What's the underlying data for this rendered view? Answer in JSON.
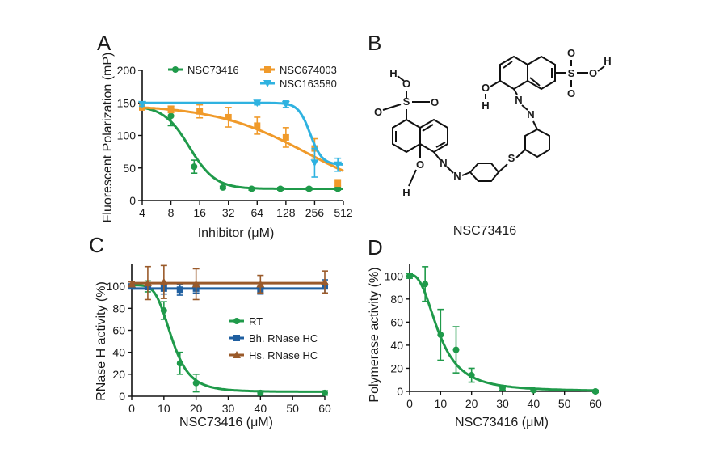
{
  "panels": {
    "a": "A",
    "b": "B",
    "c": "C",
    "d": "D"
  },
  "structure": {
    "name": "NSC73416",
    "atoms": {
      "o": "O",
      "s": "S",
      "n": "N",
      "h": "H"
    }
  },
  "colors": {
    "green": "#1f9a4a",
    "orange": "#f09a2a",
    "cyan": "#2fb2e0",
    "blue": "#1f5fa0",
    "brown": "#9a5a2a"
  },
  "chart_data": [
    {
      "id": "A",
      "type": "line",
      "xscale": "log2",
      "xlabel": "Inhibitor (μM)",
      "ylabel": "Fluorescent Polarization (mP)",
      "xlim": [
        4,
        512
      ],
      "ylim": [
        0,
        200
      ],
      "xticks": [
        "4",
        "8",
        "16",
        "32",
        "64",
        "128",
        "256",
        "512"
      ],
      "xtick_values": [
        4,
        8,
        16,
        32,
        64,
        128,
        256,
        512
      ],
      "yticks": [
        0,
        50,
        100,
        150,
        200
      ],
      "legend_position": "top",
      "series": [
        {
          "name": "NSC73416",
          "color": "#1f9a4a",
          "marker": "circle",
          "x": [
            4,
            8,
            14,
            28,
            56,
            112,
            224,
            448
          ],
          "y": [
            145,
            130,
            52,
            20,
            18,
            18,
            18,
            18
          ],
          "err": [
            3,
            15,
            10,
            2,
            2,
            2,
            2,
            2
          ],
          "fit": {
            "top": 146,
            "bottom": 18,
            "ic50": 12.5,
            "hill": 3.2
          }
        },
        {
          "name": "NSC674003",
          "color": "#f09a2a",
          "marker": "square",
          "x": [
            4,
            8,
            16,
            32,
            64,
            128,
            256,
            448
          ],
          "y": [
            143,
            140,
            137,
            128,
            115,
            97,
            80,
            27
          ],
          "err": [
            3,
            5,
            10,
            15,
            13,
            15,
            15,
            5
          ],
          "fit": {
            "top": 147,
            "bottom": 0,
            "ic50": 210,
            "hill": 0.9
          }
        },
        {
          "name": "NSC163580",
          "color": "#2fb2e0",
          "marker": "triangle-down",
          "x": [
            4,
            64,
            128,
            256,
            448
          ],
          "y": [
            148,
            150,
            148,
            58,
            55
          ],
          "err": [
            3,
            3,
            5,
            22,
            10
          ],
          "fit": {
            "top": 150,
            "bottom": 55,
            "ic50": 230,
            "hill": 7
          }
        }
      ]
    },
    {
      "id": "C",
      "type": "line",
      "xlabel": "NSC73416 (μM)",
      "ylabel": "RNase H activity (%)",
      "xlim": [
        0,
        60
      ],
      "ylim": [
        0,
        120
      ],
      "xticks": [
        0,
        10,
        20,
        30,
        40,
        50,
        60
      ],
      "yticks": [
        0,
        20,
        40,
        60,
        80,
        100
      ],
      "legend_position": "center-right",
      "series": [
        {
          "name": "RT",
          "color": "#1f9a4a",
          "marker": "circle",
          "x": [
            0,
            5,
            10,
            15,
            20,
            40,
            60
          ],
          "y": [
            100,
            100,
            78,
            30,
            12,
            3,
            3
          ],
          "err": [
            2,
            5,
            8,
            10,
            8,
            2,
            2
          ],
          "fit": {
            "top": 101,
            "bottom": 4,
            "ic50": 12.5,
            "hill": 4.5
          }
        },
        {
          "name": "Bh. RNase HC",
          "color": "#1f5fa0",
          "marker": "square",
          "x": [
            0,
            5,
            10,
            15,
            20,
            40,
            60
          ],
          "y": [
            100,
            100,
            98,
            97,
            98,
            96,
            100
          ],
          "err": [
            2,
            3,
            5,
            5,
            4,
            3,
            6
          ],
          "fit": {
            "const": 98
          }
        },
        {
          "name": "Hs. RNase HC",
          "color": "#9a5a2a",
          "marker": "triangle",
          "x": [
            0,
            5,
            10,
            20,
            40,
            60
          ],
          "y": [
            102,
            103,
            104,
            102,
            102,
            104
          ],
          "err": [
            2,
            15,
            15,
            14,
            8,
            10
          ],
          "fit": {
            "const": 103
          }
        }
      ]
    },
    {
      "id": "D",
      "type": "line",
      "xlabel": "NSC73416 (μM)",
      "ylabel": "Polymerase activity (%)",
      "xlim": [
        0,
        60
      ],
      "ylim": [
        0,
        110
      ],
      "xticks": [
        0,
        10,
        20,
        30,
        40,
        50,
        60
      ],
      "yticks": [
        0,
        20,
        40,
        60,
        80,
        100
      ],
      "series": [
        {
          "color": "#1f9a4a",
          "marker": "circle",
          "x": [
            0,
            5,
            10,
            15,
            20,
            30,
            40,
            60
          ],
          "y": [
            100,
            93,
            49,
            36,
            14,
            3,
            1,
            0
          ],
          "err": [
            2,
            15,
            22,
            20,
            6,
            2,
            1,
            1
          ],
          "fit": {
            "top": 101,
            "bottom": 0,
            "ic50": 9.5,
            "hill": 2.6
          }
        }
      ]
    }
  ]
}
